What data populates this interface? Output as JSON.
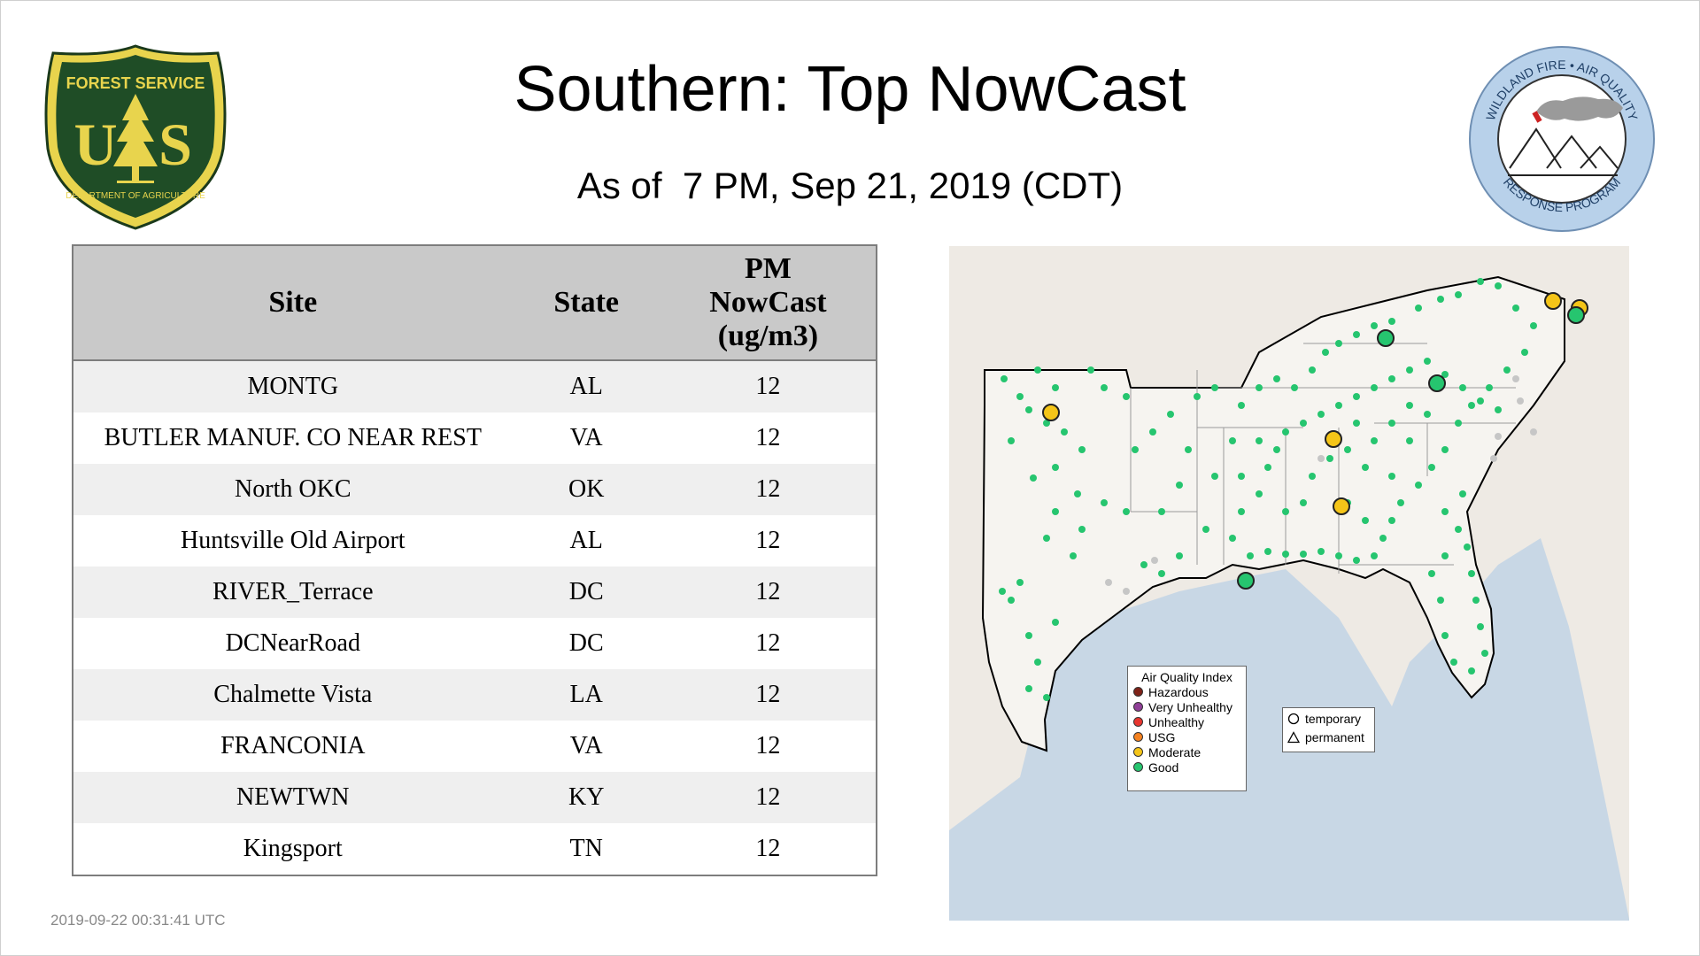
{
  "page": {
    "title": "Southern: Top NowCast",
    "subtitle": "As of  7 PM, Sep 21, 2019 (CDT)",
    "timestamp": "2019-09-22 00:31:41 UTC"
  },
  "logos": {
    "forest_service": {
      "top_text": "FOREST SERVICE",
      "left_letter": "U",
      "right_letter": "S",
      "bottom_text": "DEPARTMENT OF AGRICULTURE"
    },
    "wildland": {
      "top_text": "WILDLAND FIRE • AIR QUALITY",
      "bottom_text": "RESPONSE PROGRAM"
    }
  },
  "table": {
    "headers": {
      "site": "Site",
      "state": "State",
      "pm_line1": "PM",
      "pm_line2": "NowCast",
      "pm_line3": "(ug/m3)"
    },
    "rows": [
      {
        "site": "MONTG",
        "state": "AL",
        "value": "12"
      },
      {
        "site": "BUTLER MANUF. CO NEAR REST",
        "state": "VA",
        "value": "12"
      },
      {
        "site": "North OKC",
        "state": "OK",
        "value": "12"
      },
      {
        "site": "Huntsville Old Airport",
        "state": "AL",
        "value": "12"
      },
      {
        "site": "RIVER_Terrace",
        "state": "DC",
        "value": "12"
      },
      {
        "site": "DCNearRoad",
        "state": "DC",
        "value": "12"
      },
      {
        "site": "Chalmette Vista",
        "state": "LA",
        "value": "12"
      },
      {
        "site": "FRANCONIA",
        "state": "VA",
        "value": "12"
      },
      {
        "site": "NEWTWN",
        "state": "KY",
        "value": "12"
      },
      {
        "site": "Kingsport",
        "state": "TN",
        "value": "12"
      }
    ]
  },
  "map": {
    "colors": {
      "water": "#c8d7e5",
      "land": "#eeeae4",
      "region": "#f6f4f0",
      "good": "#26c56f",
      "moderate": "#f5c518",
      "inactive": "#c6c6c6",
      "border": "#000000"
    },
    "legend": {
      "title": "Air Quality Index",
      "items": [
        {
          "label": "Hazardous",
          "color": "#7e2218"
        },
        {
          "label": "Very Unhealthy",
          "color": "#8f3f97"
        },
        {
          "label": "Unhealthy",
          "color": "#e8352f"
        },
        {
          "label": "USG",
          "color": "#f58220"
        },
        {
          "label": "Moderate",
          "color": "#f5c518"
        },
        {
          "label": "Good",
          "color": "#26c56f"
        }
      ]
    },
    "type_legend": {
      "temporary": "temporary",
      "permanent": "permanent"
    }
  }
}
